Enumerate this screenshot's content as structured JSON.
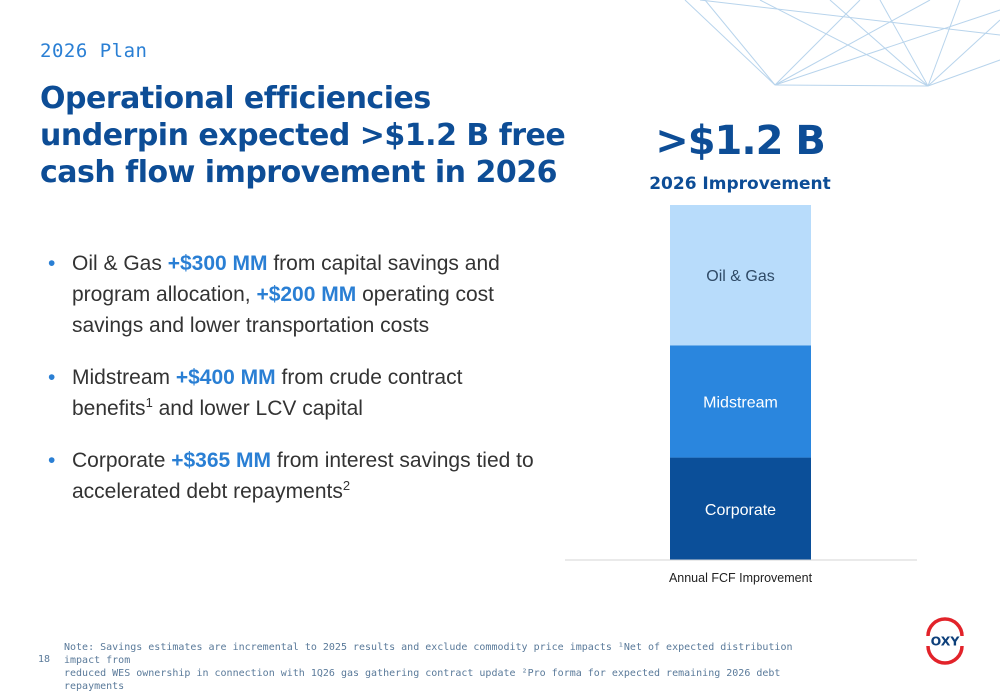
{
  "header": {
    "kicker": "2026 Plan",
    "title_lines": [
      "Operational efficiencies",
      "underpin expected >$1.2 B free",
      "cash flow improvement in 2026"
    ]
  },
  "bullets": [
    {
      "parts": [
        {
          "text": "Oil & Gas ",
          "highlight": false
        },
        {
          "text": "+$300 MM",
          "highlight": true
        },
        {
          "text": " from capital savings and program allocation, ",
          "highlight": false
        },
        {
          "text": "+$200 MM",
          "highlight": true
        },
        {
          "text": " operating cost savings and lower transportation costs",
          "highlight": false
        }
      ]
    },
    {
      "parts": [
        {
          "text": "Midstream ",
          "highlight": false
        },
        {
          "text": "+$400 MM",
          "highlight": true
        },
        {
          "text": " from crude contract benefits",
          "highlight": false
        },
        {
          "text": "1",
          "sup": true
        },
        {
          "text": " and lower LCV capital",
          "highlight": false
        }
      ]
    },
    {
      "parts": [
        {
          "text": "Corporate ",
          "highlight": false
        },
        {
          "text": "+$365 MM",
          "highlight": true
        },
        {
          "text": " from interest savings tied to accelerated debt repayments",
          "highlight": false
        },
        {
          "text": "2",
          "sup": true
        }
      ]
    }
  ],
  "summary": {
    "value": ">$1.2 B",
    "caption": "2026 Improvement"
  },
  "chart_data": {
    "type": "bar",
    "stacked": true,
    "categories": [
      "Annual FCF Improvement"
    ],
    "xlabel": "",
    "series": [
      {
        "name": "Corporate",
        "values": [
          365
        ],
        "color": "#0b4f99"
      },
      {
        "name": "Midstream",
        "values": [
          400
        ],
        "color": "#2a86de"
      },
      {
        "name": "Oil & Gas",
        "values": [
          500
        ],
        "color": "#b8dcfb"
      }
    ],
    "segment_labels_inside": true,
    "grid": false
  },
  "footer": {
    "page_number": "18",
    "note_line1": "Note: Savings estimates are incremental to 2025 results and exclude commodity price impacts   ¹Net of expected distribution impact from",
    "note_line2": "reduced WES ownership in connection with 1Q26 gas gathering contract update   ²Pro forma for expected remaining 2026 debt repayments"
  },
  "logo": {
    "text": "OXY",
    "colors": {
      "red": "#e2232a",
      "blue": "#0d3f7a"
    }
  },
  "colors": {
    "accent": "#2a7fd4",
    "navy": "#0d4d96"
  }
}
